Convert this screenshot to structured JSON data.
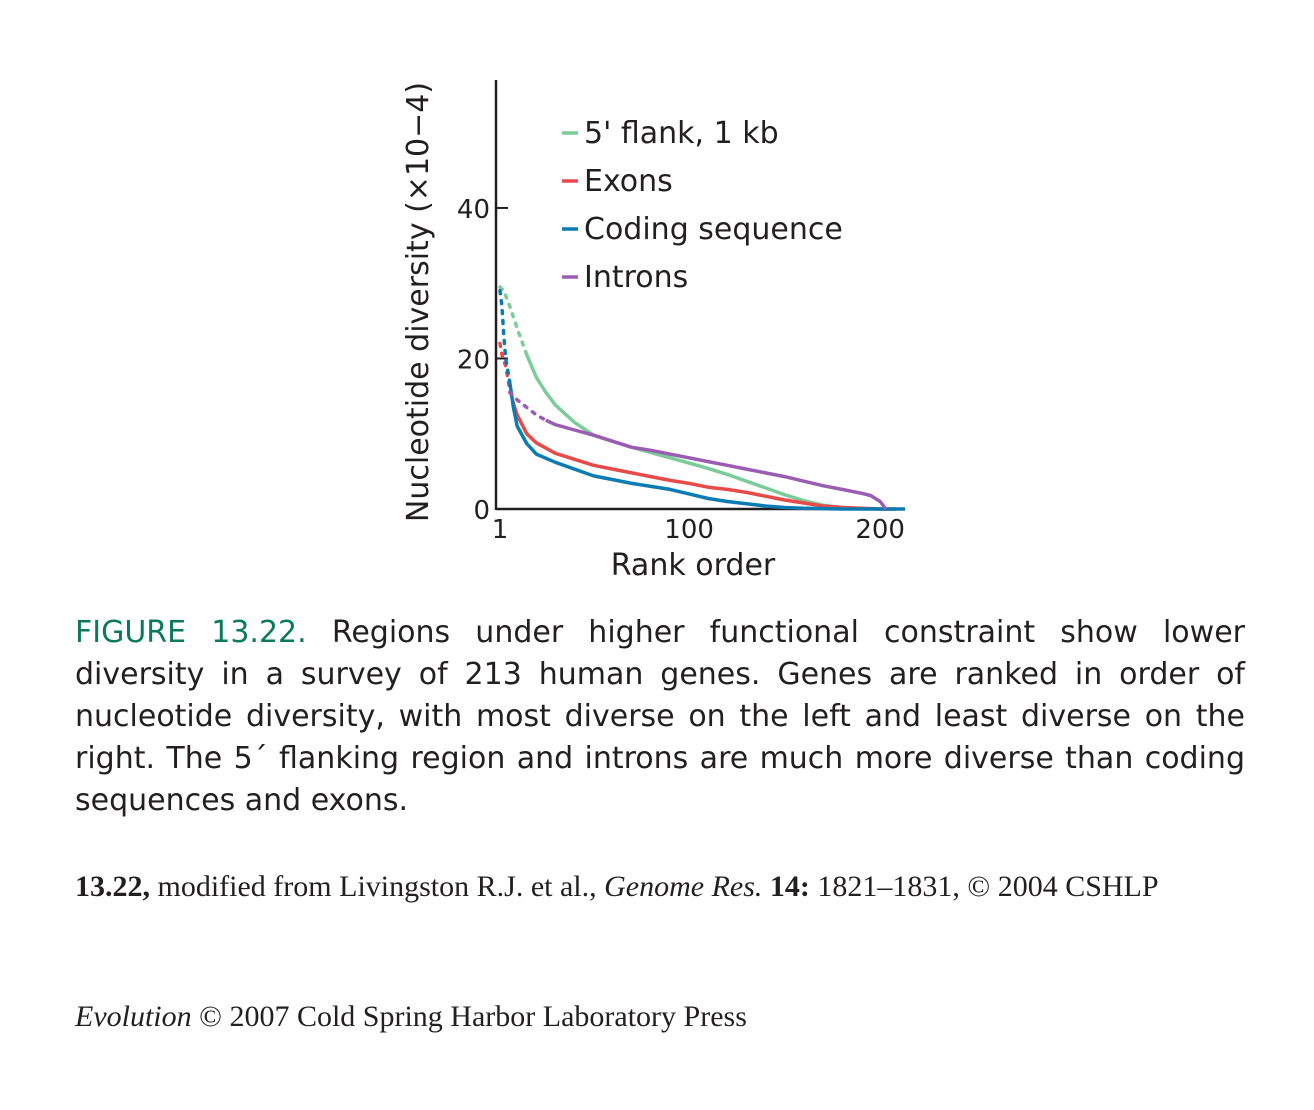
{
  "chart_data": {
    "type": "line",
    "title": "",
    "xlabel": "Rank order",
    "ylabel": "Nucleotide diversity (×10−4)",
    "xlim": [
      1,
      213
    ],
    "ylim": [
      0,
      57
    ],
    "xticks": [
      {
        "value": 1,
        "label": "1"
      },
      {
        "value": 100,
        "label": "100"
      },
      {
        "value": 200,
        "label": "200"
      }
    ],
    "yticks": [
      {
        "value": 0,
        "label": "0"
      },
      {
        "value": 20,
        "label": "20"
      },
      {
        "value": 40,
        "label": "40"
      }
    ],
    "legend_position": "top-right",
    "series": [
      {
        "name": "5' flank, 1 kb",
        "color": "#7ccc9a",
        "x": [
          1,
          3,
          6,
          10,
          15,
          20,
          25,
          30,
          40,
          50,
          60,
          70,
          80,
          90,
          100,
          110,
          120,
          130,
          140,
          150,
          160,
          170,
          180,
          190,
          200,
          208
        ],
        "y": [
          29.5,
          29,
          27,
          24,
          20.5,
          17.5,
          15.5,
          13.8,
          11.5,
          9.8,
          9.0,
          8.2,
          7.5,
          6.8,
          6.1,
          5.4,
          4.6,
          3.7,
          2.8,
          1.9,
          1.1,
          0.5,
          0.2,
          0.05,
          0,
          0
        ]
      },
      {
        "name": "Exons",
        "color": "#e84a4a",
        "x": [
          1,
          2,
          4,
          6,
          8,
          10,
          15,
          20,
          30,
          40,
          50,
          60,
          70,
          80,
          90,
          100,
          110,
          120,
          130,
          140,
          150,
          160,
          170,
          180,
          190,
          200,
          208
        ],
        "y": [
          22,
          20.5,
          19,
          16,
          14,
          12.5,
          10,
          8.8,
          7.4,
          6.6,
          5.8,
          5.3,
          4.8,
          4.3,
          3.8,
          3.4,
          2.9,
          2.6,
          2.2,
          1.7,
          1.2,
          0.8,
          0.4,
          0.2,
          0.1,
          0,
          0
        ]
      },
      {
        "name": "Coding sequence",
        "color": "#0a7cb3",
        "x": [
          1,
          2,
          3,
          4,
          6,
          8,
          10,
          15,
          20,
          30,
          40,
          50,
          60,
          70,
          80,
          90,
          100,
          110,
          120,
          130,
          140,
          150,
          160,
          170,
          180,
          190,
          200,
          213
        ],
        "y": [
          29,
          27,
          23,
          20,
          17,
          13.5,
          11,
          8.7,
          7.3,
          6.2,
          5.3,
          4.4,
          3.9,
          3.4,
          3.0,
          2.6,
          2.0,
          1.4,
          1.0,
          0.7,
          0.4,
          0.2,
          0.1,
          0.05,
          0,
          0,
          0,
          0
        ]
      },
      {
        "name": "Introns",
        "color": "#9b5cb4",
        "x": [
          6,
          10,
          15,
          20,
          25,
          30,
          40,
          50,
          60,
          70,
          80,
          90,
          100,
          110,
          120,
          130,
          140,
          150,
          160,
          170,
          180,
          190,
          195,
          200,
          203
        ],
        "y": [
          15.5,
          14.5,
          13.5,
          12.5,
          11.8,
          11.2,
          10.5,
          9.8,
          9.0,
          8.2,
          7.8,
          7.3,
          6.8,
          6.3,
          5.8,
          5.3,
          4.8,
          4.3,
          3.7,
          3.1,
          2.6,
          2.1,
          1.8,
          1.0,
          0
        ]
      }
    ]
  },
  "caption": {
    "label": "FIGURE 13.22.",
    "text": "Regions under higher functional constraint show lower diversity in a survey of 213 human genes. Genes are ranked in order of nucleotide diversity, with most diverse on the left and least diverse on the right. The 5´ flanking region and introns are much more diverse than coding sequences and exons."
  },
  "credit": {
    "figure_number": "13.22,",
    "text_before": "modified from Livingston R.J. et al.,",
    "journal": "Genome Res.",
    "volume": "14:",
    "text_after": "1821–1831, © 2004 CSHLP"
  },
  "footer": {
    "book": "Evolution",
    "text": "© 2007 Cold Spring Harbor Laboratory Press"
  }
}
